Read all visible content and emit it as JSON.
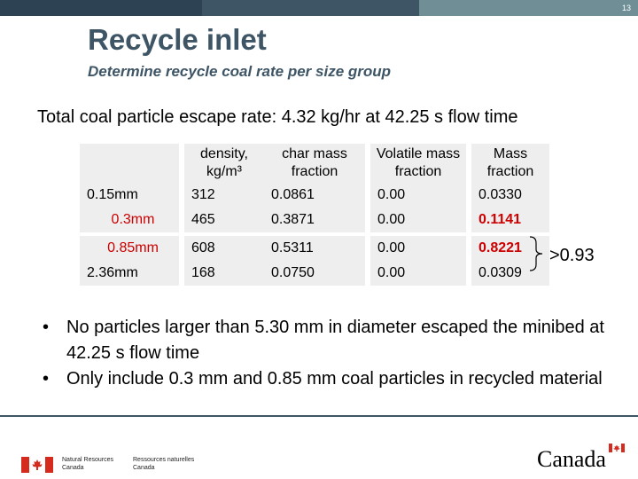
{
  "slide": {
    "page_number": "13",
    "title": "Recycle inlet",
    "subtitle": "Determine recycle coal rate per size group",
    "summary": "Total coal particle escape rate: 4.32 kg/hr at 42.25 s flow time"
  },
  "table": {
    "headers": [
      "",
      "density, kg/m³",
      "char mass fraction",
      "Volatile mass fraction",
      "Mass fraction"
    ],
    "rows": [
      {
        "size": "0.15mm",
        "density": "312",
        "char": "0.0861",
        "volatile": "0.00",
        "mass": "0.0330",
        "highlight": false
      },
      {
        "size": "0.3mm",
        "density": "465",
        "char": "0.3871",
        "volatile": "0.00",
        "mass": "0.1141",
        "highlight": true
      },
      {
        "size": "0.85mm",
        "density": "608",
        "char": "0.5311",
        "volatile": "0.00",
        "mass": "0.8221",
        "highlight": true
      },
      {
        "size": "2.36mm",
        "density": "168",
        "char": "0.0750",
        "volatile": "0.00",
        "mass": "0.0309",
        "highlight": false
      }
    ],
    "highlight_color": "#cc0000"
  },
  "annotation": ">0.93",
  "bullets": [
    "No particles larger than 5.30 mm in diameter escaped the minibed at 42.25 s flow time",
    "Only include 0.3 mm and 0.85 mm coal particles in recycled material"
  ],
  "footer": {
    "en_line1": "Natural Resources",
    "en_line2": "Canada",
    "fr_line1": "Ressources naturelles",
    "fr_line2": "Canada",
    "wordmark": "Canada"
  },
  "colors": {
    "title": "#3e5566",
    "topbar": [
      "#2d4253",
      "#3e5566",
      "#56717f",
      "#6f8e96"
    ]
  }
}
